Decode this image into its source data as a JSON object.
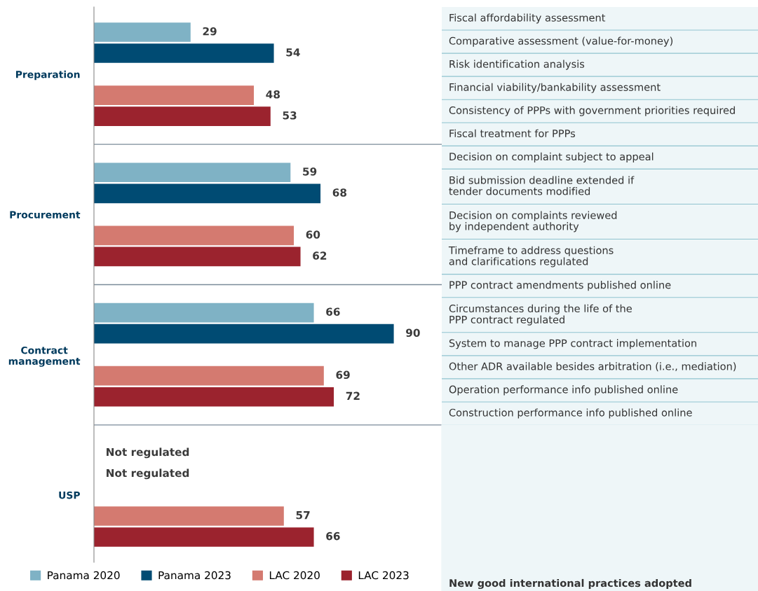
{
  "chart_data": {
    "type": "bar",
    "orientation": "horizontal",
    "categories": [
      "Preparation",
      "Procurement",
      "Contract\nmanagement",
      "USP"
    ],
    "series": [
      {
        "name": "Panama 2020",
        "color": "#7fb2c5",
        "values": [
          29,
          59,
          66,
          null
        ],
        "value_labels": [
          "29",
          "59",
          "66",
          "Not regulated"
        ]
      },
      {
        "name": "Panama 2023",
        "color": "#004b73",
        "values": [
          54,
          68,
          90,
          null
        ],
        "value_labels": [
          "54",
          "68",
          "90",
          "Not regulated"
        ]
      },
      {
        "name": "LAC 2020",
        "color": "#d47a70",
        "values": [
          48,
          60,
          69,
          57
        ],
        "value_labels": [
          "48",
          "60",
          "69",
          "57"
        ]
      },
      {
        "name": "LAC 2023",
        "color": "#9b232e",
        "values": [
          53,
          62,
          72,
          66
        ],
        "value_labels": [
          "53",
          "62",
          "72",
          "66"
        ]
      }
    ],
    "legend": "bottom",
    "grid": false,
    "annotations": [
      "Fiscal affordability assessment",
      "Comparative assessment (value-for-money)",
      "Risk identification analysis",
      "Financial viability/bankability assessment",
      "Consistency of PPPs with government priorities required",
      "Fiscal treatment for PPPs",
      "Decision on complaint subject to appeal",
      "Bid submission deadline extended if\ntender documents modified",
      "Decision on complaints reviewed\nby independent authority",
      "Timeframe to address questions\nand clarifications regulated",
      "PPP contract amendments published online",
      "Circumstances during the life of the\nPPP contract regulated",
      "System to manage PPP contract implementation",
      "Other ADR available besides arbitration (i.e., mediation)",
      "Operation performance info published online",
      "Construction performance info published online",
      "New good international practices adopted"
    ]
  }
}
